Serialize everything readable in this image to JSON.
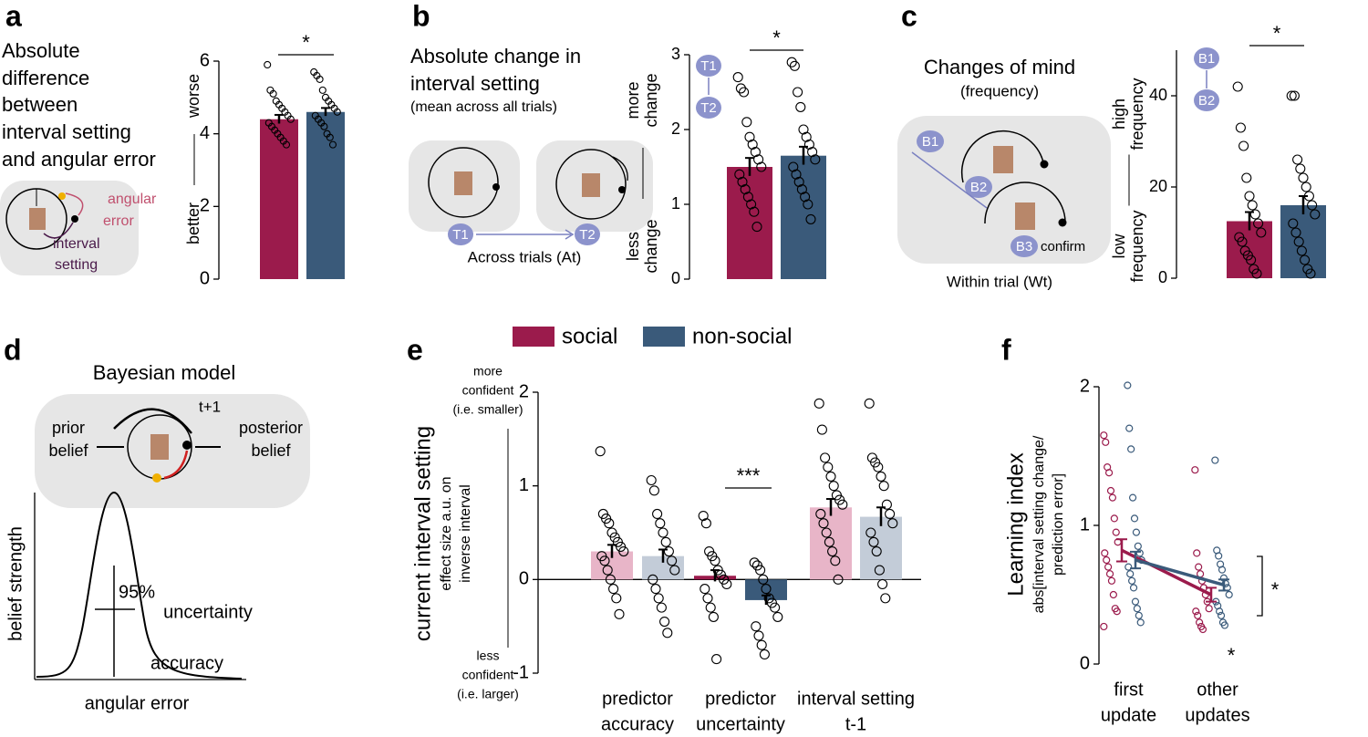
{
  "panel_labels": [
    "a",
    "b",
    "c",
    "d",
    "e",
    "f"
  ],
  "panel_a": {
    "title": [
      "Absolute",
      "difference",
      "between",
      "interval setting",
      "and angular error"
    ],
    "angular_error": [
      "angular",
      "error"
    ],
    "interval_setting": [
      "interval",
      "setting"
    ]
  },
  "panel_b": {
    "title": [
      "Absolute change in",
      "interval setting"
    ],
    "subtitle": "(mean across all trials)",
    "trial_1": "T1",
    "trial_2": "T2",
    "caption": "Across trials (At)"
  },
  "panel_c": {
    "title": "Changes of mind",
    "subtitle": "(frequency)",
    "b1": "B1",
    "b2": "B2",
    "b3": "B3",
    "confirm": "confirm",
    "caption": "Within trial (Wt)"
  },
  "panel_d": {
    "title": "Bayesian model",
    "step": "t+1",
    "prior": [
      "prior",
      "belief"
    ],
    "posterior": [
      "posterior",
      "belief"
    ],
    "y_label": "belief strength",
    "interval": "95%",
    "uncertainty": "uncertainty",
    "accuracy": "accuracy",
    "x_label": "angular error"
  },
  "chart_data": [
    {
      "type": "bar",
      "ylim": [
        0,
        6
      ],
      "yticks": [
        0,
        2,
        4,
        6
      ],
      "y_label_top": [
        "worse"
      ],
      "y_label_bottom": [
        "better"
      ],
      "annotation": "*",
      "series": [
        {
          "color": "#9b1b4c",
          "values": [
            4.4
          ],
          "errors": [
            0.12
          ],
          "points": [
            [
              5.9,
              5.2,
              5.1,
              4.9,
              4.8,
              4.7,
              4.6,
              4.5,
              4.4,
              4.3,
              4.2,
              4.1,
              4.0,
              3.9,
              3.8,
              3.7
            ]
          ]
        },
        {
          "color": "#3a5a7a",
          "values": [
            4.6
          ],
          "errors": [
            0.11
          ],
          "points": [
            [
              5.7,
              5.6,
              5.5,
              5.2,
              5.0,
              4.9,
              4.8,
              4.7,
              4.6,
              4.5,
              4.4,
              4.3,
              4.2,
              4.0,
              3.9,
              3.7
            ]
          ]
        }
      ]
    },
    {
      "type": "bar",
      "ylim": [
        0,
        3
      ],
      "yticks": [
        0,
        1,
        2,
        3
      ],
      "y_label_top": [
        "more",
        "change"
      ],
      "y_label_bottom": [
        "less",
        "change"
      ],
      "annotation": "*",
      "series": [
        {
          "color": "#9b1b4c",
          "values": [
            1.5
          ],
          "errors": [
            0.12
          ],
          "points": [
            [
              2.7,
              2.55,
              2.5,
              2.1,
              1.9,
              1.8,
              1.7,
              1.6,
              1.5,
              1.4,
              1.3,
              1.2,
              1.1,
              1.0,
              0.9,
              0.7
            ]
          ]
        },
        {
          "color": "#3a5a7a",
          "values": [
            1.65
          ],
          "errors": [
            0.12
          ],
          "points": [
            [
              2.9,
              2.85,
              2.5,
              2.3,
              2.0,
              1.9,
              1.8,
              1.7,
              1.6,
              1.5,
              1.4,
              1.3,
              1.2,
              1.1,
              1.0,
              0.8
            ]
          ]
        }
      ]
    },
    {
      "type": "bar",
      "ylim": [
        0,
        50
      ],
      "yticks": [
        0,
        20,
        40
      ],
      "y_label_top": [
        "high",
        "frequency"
      ],
      "y_label_bottom": [
        "low",
        "frequency"
      ],
      "annotation": "*",
      "series": [
        {
          "color": "#9b1b4c",
          "values": [
            12.5
          ],
          "errors": [
            2
          ],
          "points": [
            [
              42,
              33,
              29,
              22,
              18,
              16,
              14,
              12,
              10,
              9,
              8,
              6,
              5,
              4,
              2,
              1
            ]
          ]
        },
        {
          "color": "#3a5a7a",
          "values": [
            16
          ],
          "errors": [
            2
          ],
          "points": [
            [
              40,
              40,
              26,
              24,
              22,
              20,
              18,
              16,
              14,
              12,
              10,
              8,
              6,
              4,
              2,
              1
            ]
          ]
        }
      ]
    },
    {
      "type": "bar",
      "ylim": [
        -1,
        2
      ],
      "yticks": [
        -1,
        0,
        1,
        2
      ],
      "y_label": "current interval setting",
      "y_sublabel": [
        "effect size a.u. on",
        "inverse interval"
      ],
      "top_note": [
        "more",
        "confident",
        "(i.e. smaller)"
      ],
      "bottom_note": [
        "less",
        "confident",
        "(i.e. larger)"
      ],
      "annotation": "***",
      "categories": [
        [
          "predictor",
          "accuracy"
        ],
        [
          "predictor",
          "uncertainty"
        ],
        [
          "interval setting",
          "t-1"
        ]
      ],
      "series": [
        {
          "name": "social",
          "color": "#9b1b4c",
          "colors": [
            "#e8b5c8",
            "#9b1b4c",
            "#e8b5c8"
          ],
          "values": [
            0.3,
            0.04,
            0.77
          ],
          "errors": [
            0.07,
            0.06,
            0.09
          ],
          "points": [
            [
              1.37,
              0.7,
              0.65,
              0.6,
              0.5,
              0.45,
              0.4,
              0.35,
              0.3,
              0.25,
              0.2,
              0.1,
              0.0,
              -0.1,
              -0.2,
              -0.37
            ],
            [
              0.68,
              0.6,
              0.3,
              0.25,
              0.2,
              0.1,
              0.05,
              0.0,
              -0.05,
              -0.1,
              -0.2,
              -0.3,
              -0.4,
              -0.85
            ],
            [
              1.88,
              1.6,
              1.3,
              1.2,
              1.1,
              1.0,
              0.9,
              0.85,
              0.8,
              0.7,
              0.6,
              0.5,
              0.4,
              0.3,
              0.2,
              0.0
            ]
          ]
        },
        {
          "name": "non-social",
          "color": "#3a5a7a",
          "colors": [
            "#c3ccd8",
            "#3a5a7a",
            "#c3ccd8"
          ],
          "values": [
            0.25,
            -0.22,
            0.67
          ],
          "errors": [
            0.07,
            0.05,
            0.1
          ],
          "points": [
            [
              1.06,
              0.95,
              0.7,
              0.6,
              0.5,
              0.4,
              0.3,
              0.2,
              0.1,
              0.0,
              -0.1,
              -0.2,
              -0.3,
              -0.45,
              -0.57
            ],
            [
              0.18,
              0.15,
              0.1,
              0.0,
              -0.1,
              -0.2,
              -0.25,
              -0.3,
              -0.4,
              -0.5,
              -0.6,
              -0.7,
              -0.8
            ],
            [
              1.88,
              1.3,
              1.25,
              1.2,
              1.1,
              1.0,
              0.8,
              0.7,
              0.6,
              0.5,
              0.4,
              0.3,
              0.1,
              -0.05,
              -0.2
            ]
          ]
        }
      ]
    },
    {
      "type": "line",
      "ylim": [
        0,
        2
      ],
      "yticks": [
        0,
        1,
        2
      ],
      "y_label": "Learning index",
      "y_sublabel": [
        "abs[interval setting change/",
        "prediction error]"
      ],
      "annotation": "*",
      "note": "*",
      "categories": [
        [
          "first",
          "update"
        ],
        [
          "other",
          "updates"
        ]
      ],
      "series": [
        {
          "color": "#9b1b4c",
          "values": [
            0.82,
            0.5
          ],
          "errors": [
            0.08,
            0.05
          ],
          "points": [
            [
              1.65,
              1.6,
              1.42,
              1.38,
              1.25,
              1.2,
              1.05,
              0.95,
              0.88,
              0.8,
              0.75,
              0.7,
              0.65,
              0.6,
              0.5,
              0.4,
              0.38,
              0.27
            ],
            [
              1.4,
              0.8,
              0.7,
              0.65,
              0.6,
              0.55,
              0.5,
              0.45,
              0.4,
              0.38,
              0.35,
              0.3,
              0.27,
              0.25
            ]
          ]
        },
        {
          "color": "#3a5a7a",
          "values": [
            0.75,
            0.57
          ],
          "errors": [
            0.06,
            0.04
          ],
          "points": [
            [
              2.01,
              1.7,
              1.55,
              1.2,
              1.05,
              0.95,
              0.85,
              0.8,
              0.75,
              0.7,
              0.65,
              0.6,
              0.55,
              0.45,
              0.4,
              0.35,
              0.3
            ],
            [
              1.47,
              0.82,
              0.78,
              0.72,
              0.68,
              0.62,
              0.58,
              0.55,
              0.5,
              0.45,
              0.42,
              0.38,
              0.35,
              0.3,
              0.28
            ]
          ]
        }
      ]
    }
  ]
}
